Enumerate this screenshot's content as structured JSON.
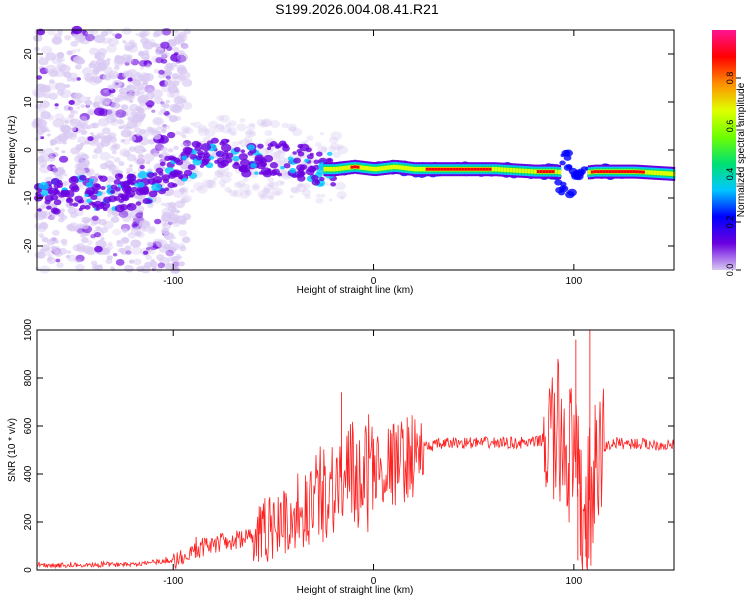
{
  "title": "S199.2026.004.08.41.R21",
  "chart_data": [
    {
      "type": "heatmap",
      "xlabel": "Height of straight line (km)",
      "ylabel": "Frequency (Hz)",
      "xlim": [
        -168,
        150
      ],
      "ylim": [
        -25,
        25
      ],
      "xticks": [
        -100,
        0,
        100
      ],
      "yticks": [
        20,
        10,
        0,
        -10,
        -20
      ],
      "colorbar": {
        "label": "Normalized spectral amplitude",
        "range": [
          0,
          1
        ],
        "ticks": [
          0.0,
          0.2,
          0.4,
          0.6,
          0.8
        ],
        "colors": [
          "#d8c8f2",
          "#6a00e0",
          "#0000ff",
          "#00c8ff",
          "#00e070",
          "#70ff00",
          "#e0ff00",
          "#ff8c00",
          "#ff0000",
          "#ff1493"
        ]
      },
      "trend": {
        "x": [
          -168,
          -150,
          -130,
          -110,
          -100,
          -90,
          -80,
          -60,
          -40,
          -25,
          -20,
          -10,
          0,
          10,
          20,
          40,
          60,
          80,
          90,
          100,
          110,
          130,
          150
        ],
        "y": [
          -11,
          -9,
          -9,
          -8,
          -4,
          -2,
          -1,
          -2,
          -2,
          -4,
          -4,
          -3.5,
          -4,
          -3.5,
          -4,
          -4,
          -4,
          -4.5,
          -4.5,
          -5,
          -4.5,
          -4.5,
          -5
        ]
      }
    },
    {
      "type": "line",
      "xlabel": "Height of straight line (km)",
      "ylabel": "SNR (10 * v/v)",
      "xlim": [
        -168,
        150
      ],
      "ylim": [
        0,
        1000
      ],
      "xticks": [
        -100,
        0,
        100
      ],
      "yticks": [
        0,
        200,
        400,
        600,
        800,
        1000
      ],
      "series": [
        {
          "name": "SNR",
          "color": "#ff2020",
          "x": [
            -168,
            -140,
            -120,
            -100,
            -90,
            -80,
            -70,
            -60,
            -50,
            -40,
            -30,
            -20,
            -10,
            0,
            10,
            20,
            25,
            30,
            40,
            60,
            80,
            85,
            90,
            95,
            100,
            105,
            110,
            115,
            120,
            150
          ],
          "y": [
            20,
            20,
            25,
            40,
            80,
            110,
            120,
            150,
            180,
            230,
            290,
            360,
            380,
            420,
            440,
            480,
            510,
            520,
            530,
            530,
            530,
            545,
            550,
            560,
            430,
            200,
            350,
            510,
            530,
            520
          ]
        }
      ],
      "spikes": [
        {
          "x": -16,
          "y": 740
        },
        {
          "x": 101,
          "y": 960
        },
        {
          "x": 108,
          "y": 1000
        },
        {
          "x": 106,
          "y": 55
        },
        {
          "x": 102,
          "y": 40
        }
      ]
    }
  ]
}
